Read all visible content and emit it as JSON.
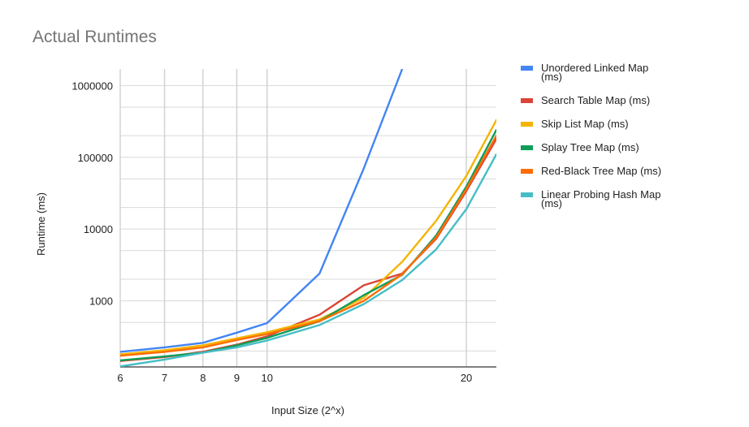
{
  "chart_data": {
    "type": "line",
    "title": "Actual Runtimes",
    "xlabel": "Input Size (2^x)",
    "ylabel": "Runtime (ms)",
    "x_scale": "log",
    "y_scale": "log",
    "xlim": [
      6,
      22.2
    ],
    "ylim": [
      120,
      1700000
    ],
    "x_ticks": [
      6,
      7,
      8,
      9,
      10,
      20
    ],
    "x_tick_labels": [
      "6",
      "7",
      "8",
      "9",
      "10",
      "20"
    ],
    "y_ticks": [
      1000,
      10000,
      100000,
      1000000
    ],
    "y_tick_labels": [
      "1000",
      "10000",
      "100000",
      "1000000"
    ],
    "y_grid": [
      200,
      500,
      2000,
      5000,
      20000,
      50000,
      200000,
      500000
    ],
    "grid": true,
    "legend_position": "right",
    "series": [
      {
        "name": "Unordered Linked Map (ms)",
        "color": "#4285f4",
        "points": [
          [
            6,
            195
          ],
          [
            7,
            225
          ],
          [
            8,
            260
          ],
          [
            9,
            360
          ],
          [
            10,
            490
          ],
          [
            12,
            2400
          ],
          [
            14,
            70000
          ],
          [
            16,
            1700000
          ]
        ]
      },
      {
        "name": "Search Table Map (ms)",
        "color": "#db4437",
        "points": [
          [
            6,
            145
          ],
          [
            7,
            165
          ],
          [
            8,
            195
          ],
          [
            9,
            245
          ],
          [
            10,
            320
          ],
          [
            12,
            640
          ],
          [
            14,
            1650
          ],
          [
            16,
            2400
          ],
          [
            18,
            7300
          ],
          [
            20,
            34000
          ],
          [
            22.2,
            180000
          ]
        ]
      },
      {
        "name": "Skip List Map (ms)",
        "color": "#f4b400",
        "points": [
          [
            6,
            180
          ],
          [
            7,
            205
          ],
          [
            8,
            240
          ],
          [
            9,
            300
          ],
          [
            10,
            365
          ],
          [
            12,
            550
          ],
          [
            14,
            1100
          ],
          [
            16,
            3500
          ],
          [
            18,
            13000
          ],
          [
            20,
            55000
          ],
          [
            22.2,
            330000
          ]
        ]
      },
      {
        "name": "Splay Tree Map (ms)",
        "color": "#0f9d58",
        "points": [
          [
            6,
            148
          ],
          [
            7,
            168
          ],
          [
            8,
            190
          ],
          [
            9,
            240
          ],
          [
            10,
            305
          ],
          [
            12,
            520
          ],
          [
            14,
            1200
          ],
          [
            16,
            2300
          ],
          [
            18,
            8100
          ],
          [
            20,
            39000
          ],
          [
            22.2,
            240000
          ]
        ]
      },
      {
        "name": "Red-Black Tree Map (ms)",
        "color": "#ff6d00",
        "points": [
          [
            6,
            172
          ],
          [
            7,
            195
          ],
          [
            8,
            225
          ],
          [
            9,
            285
          ],
          [
            10,
            345
          ],
          [
            12,
            520
          ],
          [
            14,
            1000
          ],
          [
            16,
            2350
          ],
          [
            18,
            7600
          ],
          [
            20,
            36000
          ],
          [
            22.2,
            200000
          ]
        ]
      },
      {
        "name": "Linear Probing Hash Map (ms)",
        "color": "#46bdc6",
        "points": [
          [
            6,
            122
          ],
          [
            7,
            152
          ],
          [
            8,
            190
          ],
          [
            9,
            225
          ],
          [
            10,
            280
          ],
          [
            12,
            460
          ],
          [
            14,
            900
          ],
          [
            16,
            1950
          ],
          [
            18,
            5200
          ],
          [
            20,
            19000
          ],
          [
            22.2,
            110000
          ]
        ]
      }
    ]
  }
}
